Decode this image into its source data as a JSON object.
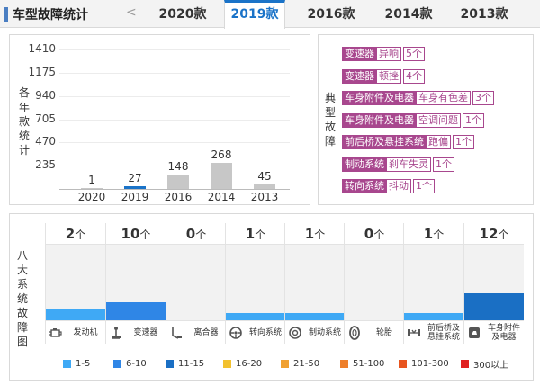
{
  "header": {
    "title": "车型故障统计",
    "prev_arrow": "<",
    "tabs": [
      {
        "label": "2020款",
        "active": false
      },
      {
        "label": "2019款",
        "active": true
      },
      {
        "label": "2016款",
        "active": false
      },
      {
        "label": "2014款",
        "active": false
      },
      {
        "label": "2013款",
        "active": false
      }
    ]
  },
  "chart_panel": {
    "ylabel_chars": [
      "各",
      "年",
      "款",
      "统",
      "计"
    ]
  },
  "chart_data": {
    "type": "bar",
    "categories": [
      "2020",
      "2019",
      "2016",
      "2014",
      "2013"
    ],
    "values": [
      1,
      27,
      148,
      268,
      45
    ],
    "highlight": "2019",
    "yticks": [
      235,
      470,
      705,
      940,
      1175,
      1410
    ],
    "ylim": [
      0,
      1410
    ],
    "xlabel": "",
    "ylabel": "各年款统计",
    "colors": {
      "bar": "#c7c7c7",
      "highlight": "#1a73c8"
    }
  },
  "faults": {
    "label_chars": [
      "典",
      "型",
      "故",
      "障"
    ],
    "items": [
      {
        "system": "变速器",
        "fault": "异响",
        "count": "5个"
      },
      {
        "system": "变速器",
        "fault": "顿挫",
        "count": "4个"
      },
      {
        "system": "车身附件及电器",
        "fault": "车身有色差",
        "count": "3个"
      },
      {
        "system": "车身附件及电器",
        "fault": "空调问题",
        "count": "1个"
      },
      {
        "system": "前后桥及悬挂系统",
        "fault": "跑偏",
        "count": "1个"
      },
      {
        "system": "制动系统",
        "fault": "刹车失灵",
        "count": "1个"
      },
      {
        "system": "转向系统",
        "fault": "抖动",
        "count": "1个"
      }
    ],
    "tag_color": "#a8478e"
  },
  "systems": {
    "label_chars": [
      "八",
      "大",
      "系",
      "统",
      "故",
      "障",
      "图"
    ],
    "unit": "个",
    "items": [
      {
        "name": "发动机",
        "icon": "engine-icon",
        "count": "2",
        "level": 0.14,
        "color": "#3fa9f5"
      },
      {
        "name": "变速器",
        "icon": "gear-shift-icon",
        "count": "10",
        "level": 0.24,
        "color": "#2f86e6"
      },
      {
        "name": "离合器",
        "icon": "clutch-pedal-icon",
        "count": "0",
        "level": 0,
        "color": "#3fa9f5"
      },
      {
        "name": "转向系统",
        "icon": "steering-wheel-icon",
        "count": "1",
        "level": 0.1,
        "color": "#3fa9f5"
      },
      {
        "name": "制动系统",
        "icon": "brake-disc-icon",
        "count": "1",
        "level": 0.1,
        "color": "#3fa9f5"
      },
      {
        "name": "轮胎",
        "icon": "tire-icon",
        "count": "0",
        "level": 0,
        "color": "#3fa9f5"
      },
      {
        "name": "前后桥及悬挂系统",
        "icon": "suspension-icon",
        "count": "1",
        "level": 0.1,
        "color": "#3fa9f5"
      },
      {
        "name": "车身附件及电器",
        "icon": "car-electrics-icon",
        "count": "12",
        "level": 0.36,
        "color": "#1a6fc4"
      }
    ]
  },
  "legend": {
    "items": [
      {
        "label": "1-5",
        "color": "#3fa9f5"
      },
      {
        "label": "6-10",
        "color": "#2f86e6"
      },
      {
        "label": "11-15",
        "color": "#1a6fc4"
      },
      {
        "label": "16-20",
        "color": "#f2c12e"
      },
      {
        "label": "21-50",
        "color": "#f0a030"
      },
      {
        "label": "51-100",
        "color": "#ee7f2a"
      },
      {
        "label": "101-300",
        "color": "#e8551f"
      },
      {
        "label": "300以上",
        "color": "#e02020"
      }
    ]
  }
}
